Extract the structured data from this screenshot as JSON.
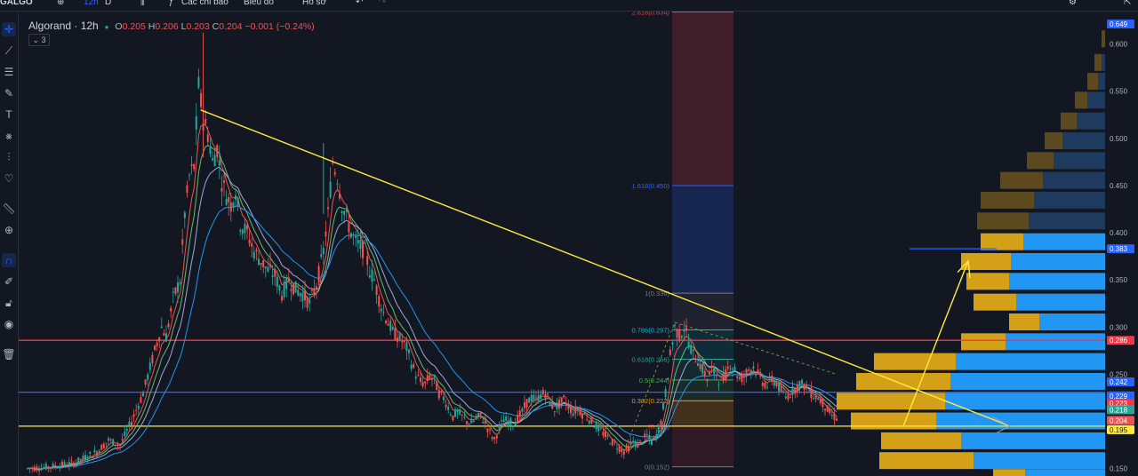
{
  "toolbar": {
    "symbol": "GALGO",
    "interval": "12h",
    "interval2": "D",
    "indicators": "Các chỉ báo",
    "chart_type": "Biểu đồ",
    "profile": "Hồ sơ"
  },
  "legend": {
    "symbol": "Algorand · 12h",
    "o_label": "O",
    "o": "0.205",
    "h_label": "H",
    "h": "0.206",
    "l_label": "L",
    "l": "0.203",
    "c_label": "C",
    "c": "0.204",
    "change": "−0.001 (−0.24%)",
    "collapse": "3"
  },
  "sidebar": [
    "crosshair-icon",
    "trend-line-icon",
    "pitchfork-icon",
    "brush-icon",
    "text-icon",
    "pattern-icon",
    "prediction-icon",
    "heart-icon",
    "ruler-icon",
    "zoom-in-icon",
    "magnet-icon",
    "lock-draw-icon",
    "lock-icon",
    "eye-icon",
    "trash-icon"
  ],
  "colors": {
    "bg": "#131722",
    "up": "#26a69a",
    "down": "#ef5350",
    "ema_fast": "#ef5350",
    "ema_mid": "#9fa8da",
    "ema_slow": "#2196f3",
    "ema_green": "#66bb6a",
    "trend": "#ffeb3b",
    "red_line": "#f23645",
    "blue_line": "#2962ff",
    "yellow_line": "#ffeb3b",
    "vp_up": "#d4a017",
    "vp_down": "#2196f3"
  },
  "chart_data": {
    "type": "candlestick",
    "symbol": "Algorand",
    "interval": "12h",
    "ylim": [
      0.145,
      0.625
    ],
    "price_ticks": [
      0.6,
      0.55,
      0.5,
      0.45,
      0.4,
      0.35,
      0.3,
      0.25,
      0.2,
      0.15
    ],
    "price_labels": [
      {
        "value": 0.649,
        "text": "0.649",
        "color": "#2962ff"
      },
      {
        "value": 0.383,
        "text": "0.383",
        "color": "#2962ff"
      },
      {
        "value": 0.286,
        "text": "0.286",
        "color": "#f23645"
      },
      {
        "value": 0.242,
        "text": "0.242",
        "color": "#2962ff"
      },
      {
        "value": 0.229,
        "text": "0.229",
        "color": "#2962ff"
      },
      {
        "value": 0.223,
        "text": "0.223",
        "color": "#f23645"
      },
      {
        "value": 0.218,
        "text": "0.218",
        "color": "#26a69a"
      },
      {
        "value": 0.204,
        "text": "0.204",
        "color": "#ef5350"
      },
      {
        "value": 0.195,
        "text": "0.195",
        "color": "#ffeb3b"
      }
    ],
    "horizontal_lines": [
      {
        "value": 0.286,
        "color": "#f23645"
      },
      {
        "value": 0.231,
        "color": "#2962ff"
      },
      {
        "value": 0.195,
        "color": "#ffeb3b"
      }
    ],
    "fibonacci": [
      {
        "ratio": "2.618",
        "price": 0.634,
        "text": "2.618(0.634)",
        "color": "#f23645"
      },
      {
        "ratio": "1.618",
        "price": 0.45,
        "text": "1.618(0.450)",
        "color": "#2962ff"
      },
      {
        "ratio": "1",
        "price": 0.336,
        "text": "1(0.336)",
        "color": "#787b86"
      },
      {
        "ratio": "0.786",
        "price": 0.297,
        "text": "0.786(0.297)",
        "color": "#00bcd4"
      },
      {
        "ratio": "0.618",
        "price": 0.266,
        "text": "0.618(0.266)",
        "color": "#26a69a"
      },
      {
        "ratio": "0.5",
        "price": 0.244,
        "text": "0.5(0.244)",
        "color": "#4caf50"
      },
      {
        "ratio": "0.382",
        "price": 0.222,
        "text": "0.382(0.222)",
        "color": "#ff9800"
      },
      {
        "ratio": "0.236",
        "price": 0.195,
        "text": "(0.195)",
        "color": "#f23645"
      },
      {
        "ratio": "0",
        "price": 0.152,
        "text": "0(0.152)",
        "color": "#787b86"
      }
    ],
    "price_path": [
      [
        0,
        0.15
      ],
      [
        10,
        0.152
      ],
      [
        20,
        0.156
      ],
      [
        30,
        0.168
      ],
      [
        35,
        0.18
      ],
      [
        40,
        0.175
      ],
      [
        45,
        0.2
      ],
      [
        50,
        0.23
      ],
      [
        55,
        0.275
      ],
      [
        58,
        0.3
      ],
      [
        60,
        0.29
      ],
      [
        63,
        0.33
      ],
      [
        66,
        0.35
      ],
      [
        68,
        0.42
      ],
      [
        70,
        0.46
      ],
      [
        72,
        0.47
      ],
      [
        74,
        0.555
      ],
      [
        76,
        0.52
      ],
      [
        78,
        0.505
      ],
      [
        80,
        0.475
      ],
      [
        82,
        0.49
      ],
      [
        84,
        0.455
      ],
      [
        86,
        0.44
      ],
      [
        88,
        0.43
      ],
      [
        90,
        0.445
      ],
      [
        92,
        0.41
      ],
      [
        95,
        0.4
      ],
      [
        98,
        0.38
      ],
      [
        101,
        0.37
      ],
      [
        104,
        0.36
      ],
      [
        107,
        0.355
      ],
      [
        110,
        0.335
      ],
      [
        113,
        0.35
      ],
      [
        116,
        0.34
      ],
      [
        119,
        0.335
      ],
      [
        122,
        0.325
      ],
      [
        125,
        0.345
      ],
      [
        128,
        0.38
      ],
      [
        130,
        0.42
      ],
      [
        132,
        0.475
      ],
      [
        134,
        0.46
      ],
      [
        136,
        0.43
      ],
      [
        138,
        0.415
      ],
      [
        140,
        0.4
      ],
      [
        142,
        0.39
      ],
      [
        144,
        0.385
      ],
      [
        146,
        0.38
      ],
      [
        148,
        0.36
      ],
      [
        150,
        0.35
      ],
      [
        152,
        0.33
      ],
      [
        154,
        0.315
      ],
      [
        156,
        0.305
      ],
      [
        158,
        0.295
      ],
      [
        160,
        0.29
      ],
      [
        162,
        0.285
      ],
      [
        164,
        0.278
      ],
      [
        166,
        0.262
      ],
      [
        168,
        0.25
      ],
      [
        170,
        0.242
      ],
      [
        172,
        0.24
      ],
      [
        174,
        0.248
      ],
      [
        176,
        0.244
      ],
      [
        178,
        0.23
      ],
      [
        180,
        0.225
      ],
      [
        182,
        0.215
      ],
      [
        184,
        0.205
      ],
      [
        186,
        0.21
      ],
      [
        188,
        0.205
      ],
      [
        190,
        0.2
      ],
      [
        192,
        0.198
      ],
      [
        194,
        0.203
      ],
      [
        196,
        0.206
      ],
      [
        198,
        0.198
      ],
      [
        200,
        0.188
      ],
      [
        202,
        0.18
      ],
      [
        204,
        0.193
      ],
      [
        206,
        0.202
      ],
      [
        208,
        0.2
      ],
      [
        210,
        0.198
      ],
      [
        212,
        0.203
      ],
      [
        214,
        0.21
      ],
      [
        216,
        0.22
      ],
      [
        218,
        0.225
      ],
      [
        220,
        0.222
      ],
      [
        222,
        0.228
      ],
      [
        224,
        0.23
      ],
      [
        226,
        0.22
      ],
      [
        228,
        0.213
      ],
      [
        230,
        0.218
      ],
      [
        232,
        0.223
      ],
      [
        234,
        0.216
      ],
      [
        236,
        0.21
      ],
      [
        238,
        0.213
      ],
      [
        240,
        0.208
      ],
      [
        242,
        0.205
      ],
      [
        244,
        0.2
      ],
      [
        246,
        0.195
      ],
      [
        248,
        0.19
      ],
      [
        250,
        0.185
      ],
      [
        252,
        0.18
      ],
      [
        254,
        0.176
      ],
      [
        256,
        0.172
      ],
      [
        258,
        0.168
      ],
      [
        260,
        0.172
      ],
      [
        262,
        0.178
      ],
      [
        264,
        0.175
      ],
      [
        266,
        0.18
      ],
      [
        268,
        0.185
      ],
      [
        270,
        0.178
      ],
      [
        272,
        0.185
      ],
      [
        274,
        0.2
      ],
      [
        276,
        0.23
      ],
      [
        278,
        0.27
      ],
      [
        280,
        0.3
      ],
      [
        282,
        0.29
      ],
      [
        284,
        0.3
      ],
      [
        286,
        0.285
      ],
      [
        288,
        0.27
      ],
      [
        290,
        0.265
      ],
      [
        292,
        0.255
      ],
      [
        294,
        0.245
      ],
      [
        296,
        0.255
      ],
      [
        298,
        0.25
      ],
      [
        300,
        0.24
      ],
      [
        302,
        0.25
      ],
      [
        304,
        0.262
      ],
      [
        306,
        0.255
      ],
      [
        308,
        0.245
      ],
      [
        310,
        0.248
      ],
      [
        312,
        0.255
      ],
      [
        314,
        0.258
      ],
      [
        316,
        0.25
      ],
      [
        318,
        0.242
      ],
      [
        320,
        0.238
      ],
      [
        322,
        0.245
      ],
      [
        324,
        0.24
      ],
      [
        326,
        0.232
      ],
      [
        328,
        0.226
      ],
      [
        330,
        0.23
      ],
      [
        332,
        0.235
      ],
      [
        334,
        0.24
      ],
      [
        336,
        0.238
      ],
      [
        338,
        0.232
      ],
      [
        340,
        0.228
      ],
      [
        342,
        0.225
      ],
      [
        344,
        0.22
      ],
      [
        346,
        0.212
      ],
      [
        348,
        0.206
      ],
      [
        350,
        0.204
      ]
    ],
    "trendline": {
      "from": [
        75,
        0.53
      ],
      "to": [
        350,
        0.223
      ]
    },
    "projection_arrow": {
      "from": [
        350,
        0.195
      ],
      "to": [
        378,
        0.37
      ]
    },
    "volume_profile": [
      {
        "price": 0.605,
        "up": 4,
        "down": 0
      },
      {
        "price": 0.58,
        "up": 8,
        "down": 4
      },
      {
        "price": 0.56,
        "up": 12,
        "down": 8
      },
      {
        "price": 0.54,
        "up": 14,
        "down": 20
      },
      {
        "price": 0.518,
        "up": 18,
        "down": 32
      },
      {
        "price": 0.497,
        "up": 20,
        "down": 48
      },
      {
        "price": 0.476,
        "up": 30,
        "down": 58
      },
      {
        "price": 0.455,
        "up": 48,
        "down": 70
      },
      {
        "price": 0.434,
        "up": 60,
        "down": 80
      },
      {
        "price": 0.412,
        "up": 58,
        "down": 86
      },
      {
        "price": 0.39,
        "up": 48,
        "down": 92
      },
      {
        "price": 0.369,
        "up": 56,
        "down": 106
      },
      {
        "price": 0.348,
        "up": 48,
        "down": 108
      },
      {
        "price": 0.326,
        "up": 48,
        "down": 100
      },
      {
        "price": 0.305,
        "up": 34,
        "down": 74
      },
      {
        "price": 0.284,
        "up": 50,
        "down": 112
      },
      {
        "price": 0.263,
        "up": 92,
        "down": 168
      },
      {
        "price": 0.242,
        "up": 106,
        "down": 174
      },
      {
        "price": 0.221,
        "up": 122,
        "down": 180
      },
      {
        "price": 0.2,
        "up": 96,
        "down": 190
      },
      {
        "price": 0.179,
        "up": 90,
        "down": 162
      },
      {
        "price": 0.158,
        "up": 106,
        "down": 148
      },
      {
        "price": 0.14,
        "up": 36,
        "down": 90
      }
    ]
  }
}
